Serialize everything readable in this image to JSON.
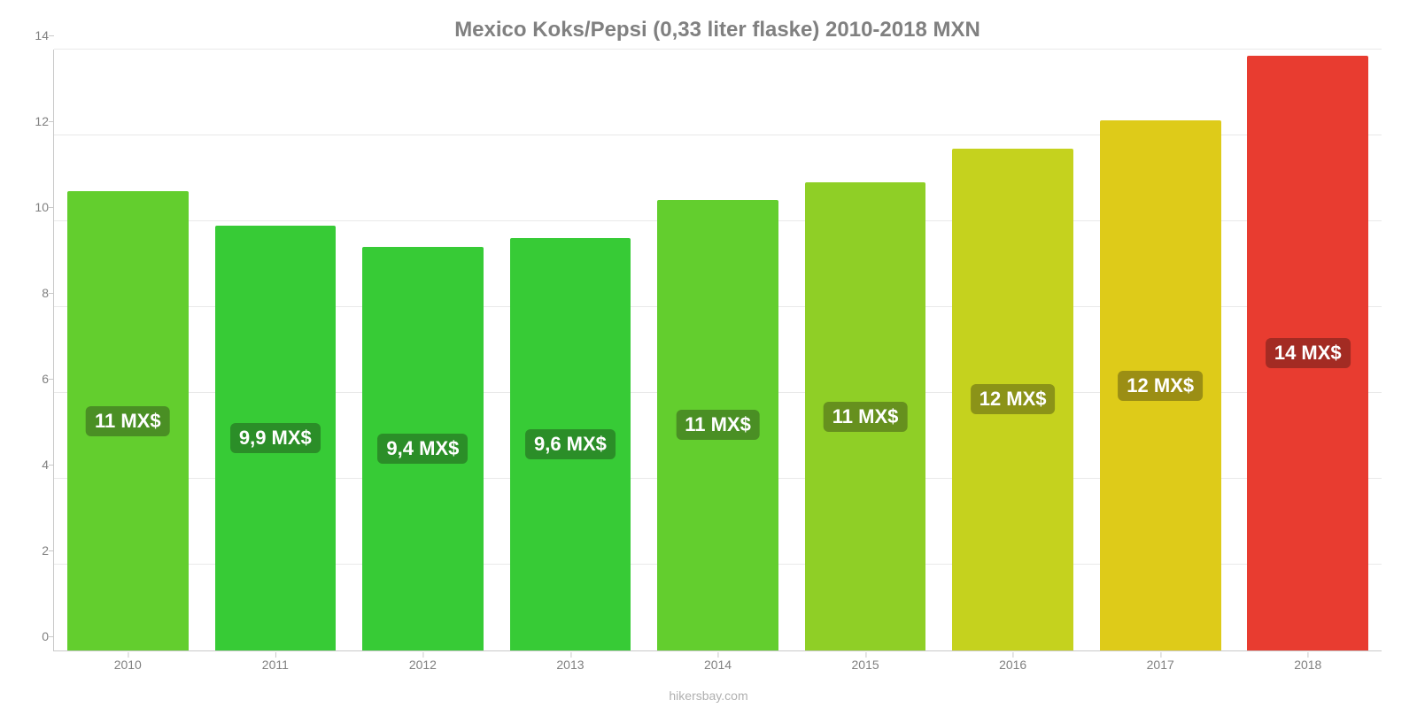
{
  "chart": {
    "type": "bar",
    "title": "Mexico Koks/Pepsi (0,33 liter flaske) 2010-2018 MXN",
    "title_fontsize": 24,
    "title_color": "#808080",
    "credit": "hikersbay.com",
    "credit_color": "#b0b0b0",
    "background_color": "#ffffff",
    "grid_color": "#e9e9e9",
    "axis_color": "#c9c9c9",
    "tick_label_color": "#808080",
    "tick_fontsize": 14,
    "ylim": [
      0,
      14
    ],
    "yticks": [
      0,
      2,
      4,
      6,
      8,
      10,
      12,
      14
    ],
    "bar_width": 0.82,
    "label_fontsize": 22,
    "label_color": "#ffffff",
    "categories": [
      "2010",
      "2011",
      "2012",
      "2013",
      "2014",
      "2015",
      "2016",
      "2017",
      "2018"
    ],
    "values": [
      10.7,
      9.9,
      9.4,
      9.6,
      10.5,
      10.9,
      11.7,
      12.35,
      13.85
    ],
    "value_labels": [
      "11 MX$",
      "9,9 MX$",
      "9,4 MX$",
      "9,6 MX$",
      "11 MX$",
      "11 MX$",
      "12 MX$",
      "12 MX$",
      "14 MX$"
    ],
    "bar_colors": [
      "#63ce2e",
      "#37cb36",
      "#37cb36",
      "#37cb36",
      "#63ce2e",
      "#8fcf26",
      "#c5d21e",
      "#decb19",
      "#e83c30"
    ],
    "label_bg_colors": [
      "#4a8f24",
      "#2b8e28",
      "#2b8e28",
      "#2b8e28",
      "#4a8f24",
      "#66901e",
      "#8b9318",
      "#9b8e14",
      "#a32b23"
    ]
  }
}
